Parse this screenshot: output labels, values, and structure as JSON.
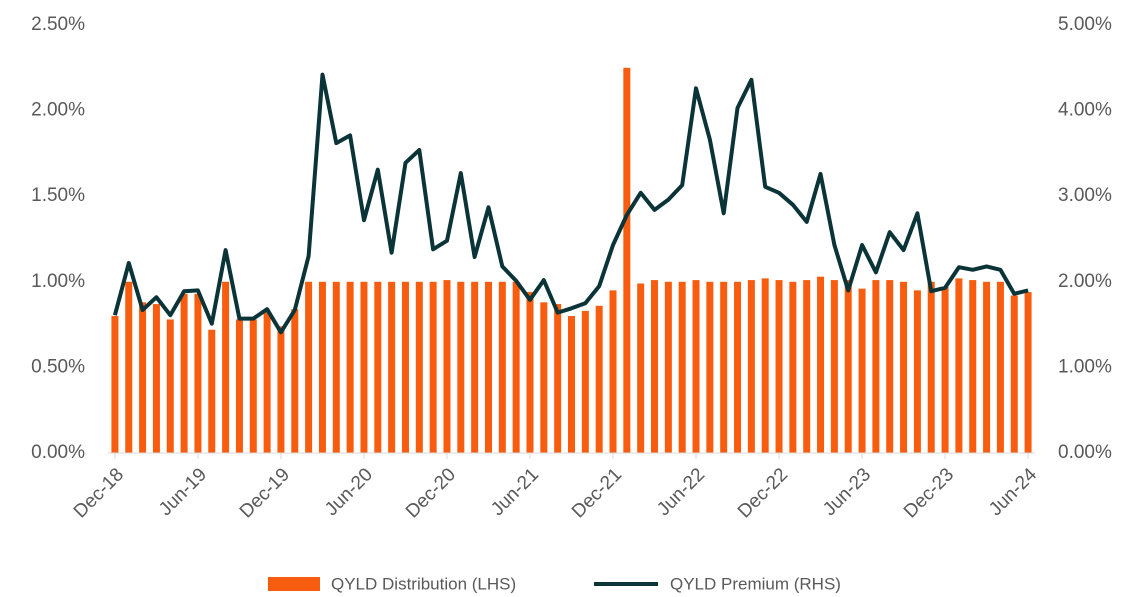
{
  "chart_data": {
    "type": "bar_line",
    "categories": [
      "Dec-18",
      null,
      null,
      null,
      null,
      null,
      "Jun-19",
      null,
      null,
      null,
      null,
      null,
      "Dec-19",
      null,
      null,
      null,
      null,
      null,
      "Jun-20",
      null,
      null,
      null,
      null,
      null,
      "Dec-20",
      null,
      null,
      null,
      null,
      null,
      "Jun-21",
      null,
      null,
      null,
      null,
      null,
      "Dec-21",
      null,
      null,
      null,
      null,
      null,
      "Jun-22",
      null,
      null,
      null,
      null,
      null,
      "Dec-22",
      null,
      null,
      null,
      null,
      null,
      "Jun-23",
      null,
      null,
      null,
      null,
      null,
      "Dec-23",
      null,
      null,
      null,
      null,
      null,
      "Jun-24"
    ],
    "series": [
      {
        "name": "QYLD Distribution (LHS)",
        "color": "#f75c0f",
        "kind": "bar",
        "values": [
          0.8,
          1.0,
          0.88,
          0.87,
          0.78,
          0.93,
          0.93,
          0.72,
          1.0,
          0.78,
          0.78,
          0.82,
          0.74,
          0.84,
          1.0,
          1.0,
          1.0,
          1.0,
          1.0,
          1.0,
          1.0,
          1.0,
          1.0,
          1.0,
          1.01,
          1.0,
          1.0,
          1.0,
          1.0,
          1.0,
          0.94,
          0.88,
          0.87,
          0.8,
          0.83,
          0.86,
          0.95,
          2.25,
          0.99,
          1.01,
          1.0,
          1.0,
          1.01,
          1.0,
          1.0,
          1.0,
          1.01,
          1.02,
          1.01,
          1.0,
          1.01,
          1.03,
          1.01,
          1.01,
          0.96,
          1.01,
          1.01,
          1.0,
          0.95,
          1.0,
          0.97,
          1.02,
          1.01,
          1.0,
          1.0,
          0.92,
          0.94
        ]
      },
      {
        "name": "QYLD Premium (RHS)",
        "color": "#0b3438",
        "kind": "line",
        "axis": "y2",
        "values": [
          1.61,
          2.22,
          1.67,
          1.82,
          1.61,
          1.89,
          1.9,
          1.51,
          2.37,
          1.57,
          1.57,
          1.68,
          1.41,
          1.67,
          2.3,
          4.42,
          3.62,
          3.71,
          2.72,
          3.31,
          2.34,
          3.39,
          3.54,
          2.38,
          2.48,
          3.27,
          2.29,
          2.87,
          2.18,
          2.01,
          1.79,
          2.02,
          1.64,
          1.69,
          1.75,
          1.95,
          2.43,
          2.78,
          3.04,
          2.84,
          2.96,
          3.13,
          4.26,
          3.66,
          2.8,
          4.03,
          4.36,
          3.11,
          3.04,
          2.9,
          2.7,
          3.26,
          2.43,
          1.9,
          2.43,
          2.11,
          2.58,
          2.37,
          2.8,
          1.89,
          1.93,
          2.17,
          2.14,
          2.18,
          2.14,
          1.86,
          1.9
        ]
      }
    ],
    "ylim": [
      0,
      2.5
    ],
    "yticks": [
      {
        "value": 0,
        "label": "0.00%"
      },
      {
        "value": 0.5,
        "label": "0.50%"
      },
      {
        "value": 1,
        "label": "1.00%"
      },
      {
        "value": 1.5,
        "label": "1.50%"
      },
      {
        "value": 2,
        "label": "2.00%"
      },
      {
        "value": 2.5,
        "label": "2.50%"
      }
    ],
    "y2lim": [
      0,
      5
    ],
    "y2ticks": [
      {
        "value": 0,
        "label": "0.00%"
      },
      {
        "value": 1,
        "label": "1.00%"
      },
      {
        "value": 2,
        "label": "2.00%"
      },
      {
        "value": 3,
        "label": "3.00%"
      },
      {
        "value": 4,
        "label": "4.00%"
      },
      {
        "value": 5,
        "label": "5.00%"
      }
    ],
    "grid": false,
    "legend": "bottom"
  }
}
